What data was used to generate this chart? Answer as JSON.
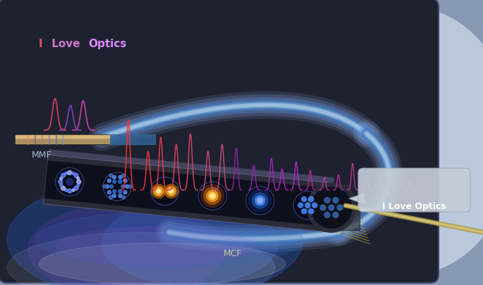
{
  "bg_outer_color": "#8899b5",
  "panel_bg": "#1e2130",
  "panel_edge": "#444466",
  "highlight_color": "#c0cce0",
  "title_I": "I",
  "title_Love": " Love ",
  "title_Optics": "Optics",
  "title_I_color": "#e05060",
  "title_Love_color": "#cc77cc",
  "title_Optics_color": "#dd88ff",
  "title_fontsize": 11,
  "mmf_label": "MMF",
  "mmf_color": "#aabbcc",
  "mmf_fs": 9,
  "mcf_label": "MCF",
  "mcf_color": "#bbccaa",
  "mcf_fs": 9,
  "bubble_text": "I Love Optics",
  "bubble_bg": "#c5cdd8",
  "bubble_text_color": "#ffffff",
  "bubble_fs": 9,
  "fiber_colors": [
    "#99bbff",
    "#6699dd",
    "#4477bb",
    "#88aaee"
  ],
  "glow_bottom_color": "#3366cc",
  "glow_purple_color": "#7744bb",
  "spectrum_red": "#ff5555",
  "spectrum_pink": "#cc44bb",
  "input_rod_color": "#c8b880",
  "mcf_dark": "#1a1c2a",
  "mcf_shell": "#3a3c50",
  "strand_color": "#aa9944"
}
